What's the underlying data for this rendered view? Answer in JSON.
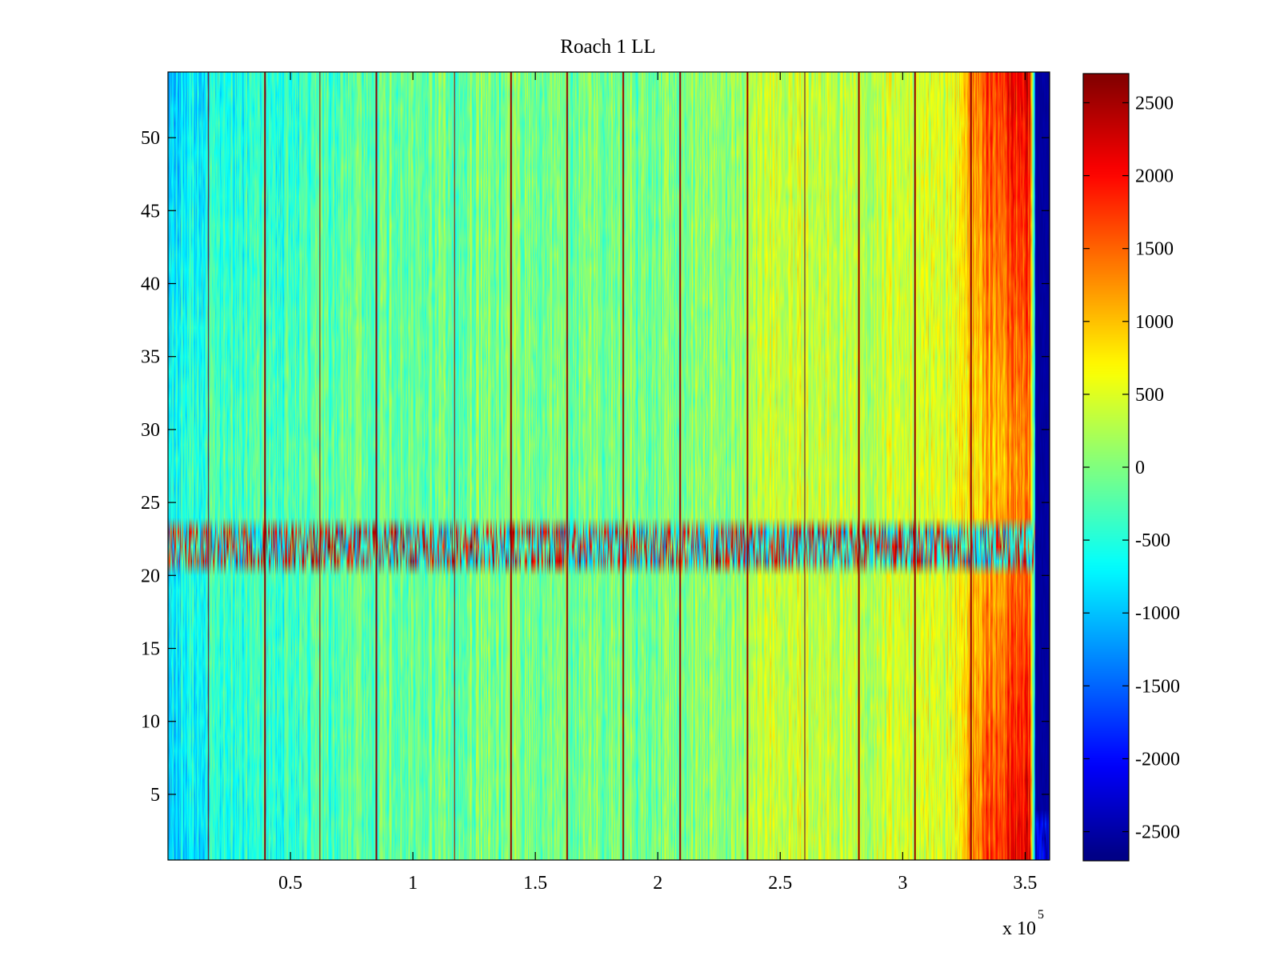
{
  "chart_data": {
    "type": "heatmap",
    "title": "Roach 1 LL",
    "xlabel": "",
    "ylabel": "",
    "x_multiplier_label": "x 10",
    "x_multiplier_exponent": "5",
    "xlim": [
      0,
      360000
    ],
    "ylim": [
      0.5,
      54.5
    ],
    "x_ticks": [
      {
        "value": 50000,
        "label": "0.5"
      },
      {
        "value": 100000,
        "label": "1"
      },
      {
        "value": 150000,
        "label": "1.5"
      },
      {
        "value": 200000,
        "label": "2"
      },
      {
        "value": 250000,
        "label": "2.5"
      },
      {
        "value": 300000,
        "label": "3"
      },
      {
        "value": 350000,
        "label": "3.5"
      }
    ],
    "y_ticks": [
      5,
      10,
      15,
      20,
      25,
      30,
      35,
      40,
      45,
      50
    ],
    "rows": 54,
    "colormap": "jet",
    "clim": [
      -2700,
      2700
    ],
    "colorbar": {
      "ticks": [
        2500,
        2000,
        1500,
        1000,
        500,
        0,
        -500,
        -1000,
        -1500,
        -2000,
        -2500
      ],
      "labels": [
        "2500",
        "2000",
        "1500",
        "1000",
        "500",
        "0",
        "-500",
        "-1000",
        "-1500",
        "-2000",
        "-2500"
      ]
    },
    "approx_value_profile_over_x": [
      {
        "x": 0,
        "value": -700
      },
      {
        "x": 20000,
        "value": -500
      },
      {
        "x": 60000,
        "value": -300
      },
      {
        "x": 100000,
        "value": -100
      },
      {
        "x": 150000,
        "value": -50
      },
      {
        "x": 200000,
        "value": -50
      },
      {
        "x": 230000,
        "value": 100
      },
      {
        "x": 250000,
        "value": 500
      },
      {
        "x": 280000,
        "value": 300
      },
      {
        "x": 320000,
        "value": 500
      },
      {
        "x": 335000,
        "value": 1500
      },
      {
        "x": 352000,
        "value": 1800
      },
      {
        "x": 355000,
        "value": -2600
      }
    ],
    "spike_columns_x": [
      16500,
      39500,
      62000,
      85000,
      117000,
      140000,
      163000,
      186000,
      209000,
      236500,
      260000,
      282000,
      305000,
      328000
    ],
    "spike_value": 2600,
    "noisy_row_band": [
      21,
      23
    ],
    "noisy_row_band_range": [
      -1500,
      2700
    ],
    "cutoff_x": 354000,
    "cutoff_value": -2600
  }
}
